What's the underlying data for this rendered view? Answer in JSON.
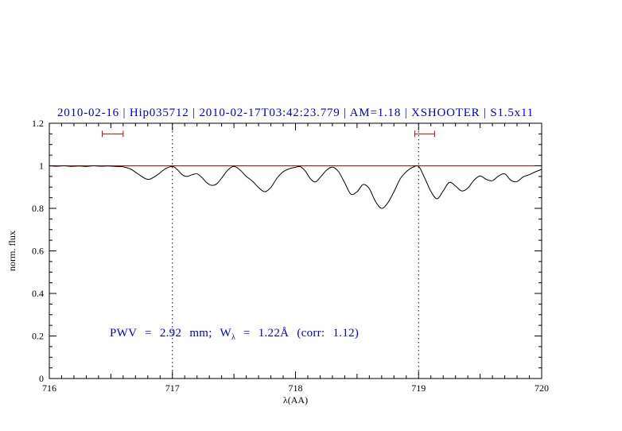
{
  "chart_data": {
    "type": "line",
    "title": "2010-02-16 | Hip035712 | 2010-02-17T03:42:23.779 | AM=1.18 | XSHOOTER | S1.5x11",
    "title_color": "#0000cd",
    "xlabel": "λ(AA)",
    "ylabel": "norm. flux",
    "xlim": [
      716,
      720
    ],
    "ylim": [
      0,
      1.2
    ],
    "x_ticks": [
      716,
      717,
      718,
      719,
      720
    ],
    "x_tick_labels": [
      "716",
      "717",
      "718",
      "719",
      "720"
    ],
    "x_minor_step": 0.1,
    "y_ticks": [
      0,
      0.2,
      0.4,
      0.6,
      0.8,
      1,
      1.2
    ],
    "y_tick_labels": [
      "0",
      "0.2",
      "0.4",
      "0.6",
      "0.8",
      "1",
      "1.2"
    ],
    "y_minor_step": 0.05,
    "grid": false,
    "legend": null,
    "reference_lines": {
      "vertical_dotted": [
        717,
        719
      ],
      "horizontal": [
        {
          "y": 1.0,
          "color": "#cc0000"
        }
      ]
    },
    "range_markers": [
      {
        "x1": 716.43,
        "x2": 716.6,
        "y": 1.15,
        "color": "#cc0000"
      },
      {
        "x1": 718.97,
        "x2": 719.13,
        "y": 1.15,
        "color": "#cc0000"
      }
    ],
    "annotation": {
      "prefix": "PWV = 2.92 mm; W",
      "subscript": "λ",
      "suffix": " = 1.22Å (corr: 1.12)",
      "color": "#0000cd",
      "x": 716.5,
      "y": 0.2
    },
    "series": [
      {
        "name": "normalized-telluric-spectrum",
        "color": "#000000",
        "points": [
          [
            716.0,
            1.0
          ],
          [
            716.06,
            0.998
          ],
          [
            716.12,
            1.0
          ],
          [
            716.18,
            0.997
          ],
          [
            716.24,
            0.999
          ],
          [
            716.3,
            0.997
          ],
          [
            716.36,
            1.0
          ],
          [
            716.42,
            0.998
          ],
          [
            716.48,
            0.999
          ],
          [
            716.54,
            0.997
          ],
          [
            716.6,
            0.995
          ],
          [
            716.66,
            0.985
          ],
          [
            716.72,
            0.962
          ],
          [
            716.78,
            0.94
          ],
          [
            716.82,
            0.938
          ],
          [
            716.88,
            0.958
          ],
          [
            716.94,
            0.985
          ],
          [
            717.0,
            0.997
          ],
          [
            717.04,
            0.982
          ],
          [
            717.08,
            0.958
          ],
          [
            717.12,
            0.95
          ],
          [
            717.16,
            0.958
          ],
          [
            717.2,
            0.962
          ],
          [
            717.24,
            0.945
          ],
          [
            717.28,
            0.92
          ],
          [
            717.32,
            0.908
          ],
          [
            717.36,
            0.915
          ],
          [
            717.4,
            0.942
          ],
          [
            717.45,
            0.98
          ],
          [
            717.5,
            0.997
          ],
          [
            717.55,
            0.98
          ],
          [
            717.6,
            0.95
          ],
          [
            717.65,
            0.928
          ],
          [
            717.7,
            0.898
          ],
          [
            717.75,
            0.878
          ],
          [
            717.8,
            0.898
          ],
          [
            717.85,
            0.942
          ],
          [
            717.9,
            0.972
          ],
          [
            717.95,
            0.986
          ],
          [
            718.0,
            0.993
          ],
          [
            718.04,
            0.996
          ],
          [
            718.08,
            0.975
          ],
          [
            718.12,
            0.94
          ],
          [
            718.16,
            0.924
          ],
          [
            718.2,
            0.945
          ],
          [
            718.25,
            0.978
          ],
          [
            718.3,
            0.994
          ],
          [
            718.35,
            0.972
          ],
          [
            718.4,
            0.92
          ],
          [
            718.45,
            0.867
          ],
          [
            718.5,
            0.878
          ],
          [
            718.55,
            0.912
          ],
          [
            718.6,
            0.892
          ],
          [
            718.65,
            0.832
          ],
          [
            718.7,
            0.8
          ],
          [
            718.75,
            0.826
          ],
          [
            718.8,
            0.878
          ],
          [
            718.85,
            0.938
          ],
          [
            718.9,
            0.972
          ],
          [
            718.95,
            0.992
          ],
          [
            719.0,
            0.997
          ],
          [
            719.05,
            0.942
          ],
          [
            719.1,
            0.88
          ],
          [
            719.15,
            0.845
          ],
          [
            719.2,
            0.882
          ],
          [
            719.25,
            0.922
          ],
          [
            719.3,
            0.905
          ],
          [
            719.35,
            0.882
          ],
          [
            719.4,
            0.895
          ],
          [
            719.45,
            0.932
          ],
          [
            719.5,
            0.952
          ],
          [
            719.55,
            0.936
          ],
          [
            719.6,
            0.93
          ],
          [
            719.65,
            0.952
          ],
          [
            719.7,
            0.962
          ],
          [
            719.75,
            0.932
          ],
          [
            719.8,
            0.926
          ],
          [
            719.85,
            0.948
          ],
          [
            719.9,
            0.958
          ],
          [
            719.95,
            0.972
          ],
          [
            720.0,
            0.983
          ]
        ]
      }
    ]
  }
}
